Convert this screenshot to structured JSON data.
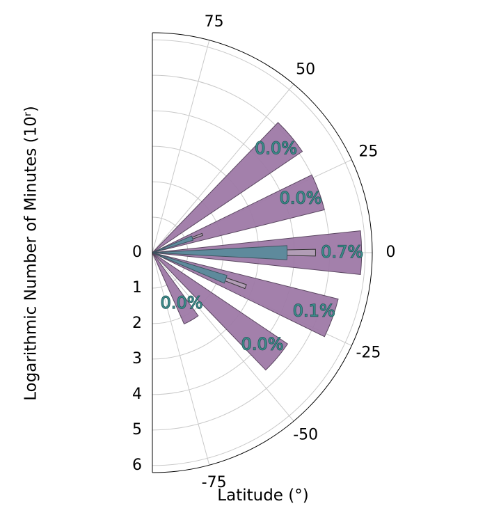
{
  "chart_data": {
    "type": "bar",
    "projection": "polar-half",
    "xlabel": "Latitude (°)",
    "ylabel": "Logarithmic Number of Minutes (10ʳ)",
    "angle_ticks": [
      "75",
      "50",
      "25",
      "0",
      "-25",
      "-50",
      "-75"
    ],
    "angle_tick_values": [
      75,
      50,
      25,
      0,
      -25,
      -50,
      -75
    ],
    "angle_range": [
      -90,
      90
    ],
    "radial_ticks": [
      "0",
      "1",
      "2",
      "3",
      "4",
      "5",
      "6"
    ],
    "radial_tick_values": [
      0,
      1,
      2,
      3,
      4,
      5,
      6
    ],
    "rlim": [
      0,
      6.2
    ],
    "grid": true,
    "series": [
      {
        "name": "",
        "color": "#9e79a6",
        "values": [
          {
            "lat": 40,
            "value": 5.1
          },
          {
            "lat": 20,
            "value": 5.0
          },
          {
            "lat": 0,
            "value": 5.9
          },
          {
            "lat": -20,
            "value": 5.4
          },
          {
            "lat": -40,
            "value": 4.6
          },
          {
            "lat": -60,
            "value": 2.2
          }
        ]
      },
      {
        "name": "",
        "color": "#5e8a9c",
        "values": [
          {
            "lat": 0,
            "value": 3.8
          },
          {
            "lat": -20,
            "value": 2.2
          },
          {
            "lat": 20,
            "value": 1.2
          }
        ]
      },
      {
        "name": "",
        "color": "#c9c9c9",
        "values": [
          {
            "lat": 0,
            "value": 4.6
          },
          {
            "lat": -20,
            "value": 2.8
          },
          {
            "lat": 20,
            "value": 1.5
          }
        ]
      }
    ],
    "annotations": [
      {
        "text": "0.0%",
        "lat": 40
      },
      {
        "text": "0.0%",
        "lat": 20
      },
      {
        "text": "0.7%",
        "lat": 0
      },
      {
        "text": "0.1%",
        "lat": -20
      },
      {
        "text": "0.0%",
        "lat": -40
      },
      {
        "text": "0.0%",
        "lat": -60
      }
    ],
    "colors": {
      "grid": "#c9c9c9",
      "frame": "#000000"
    }
  }
}
